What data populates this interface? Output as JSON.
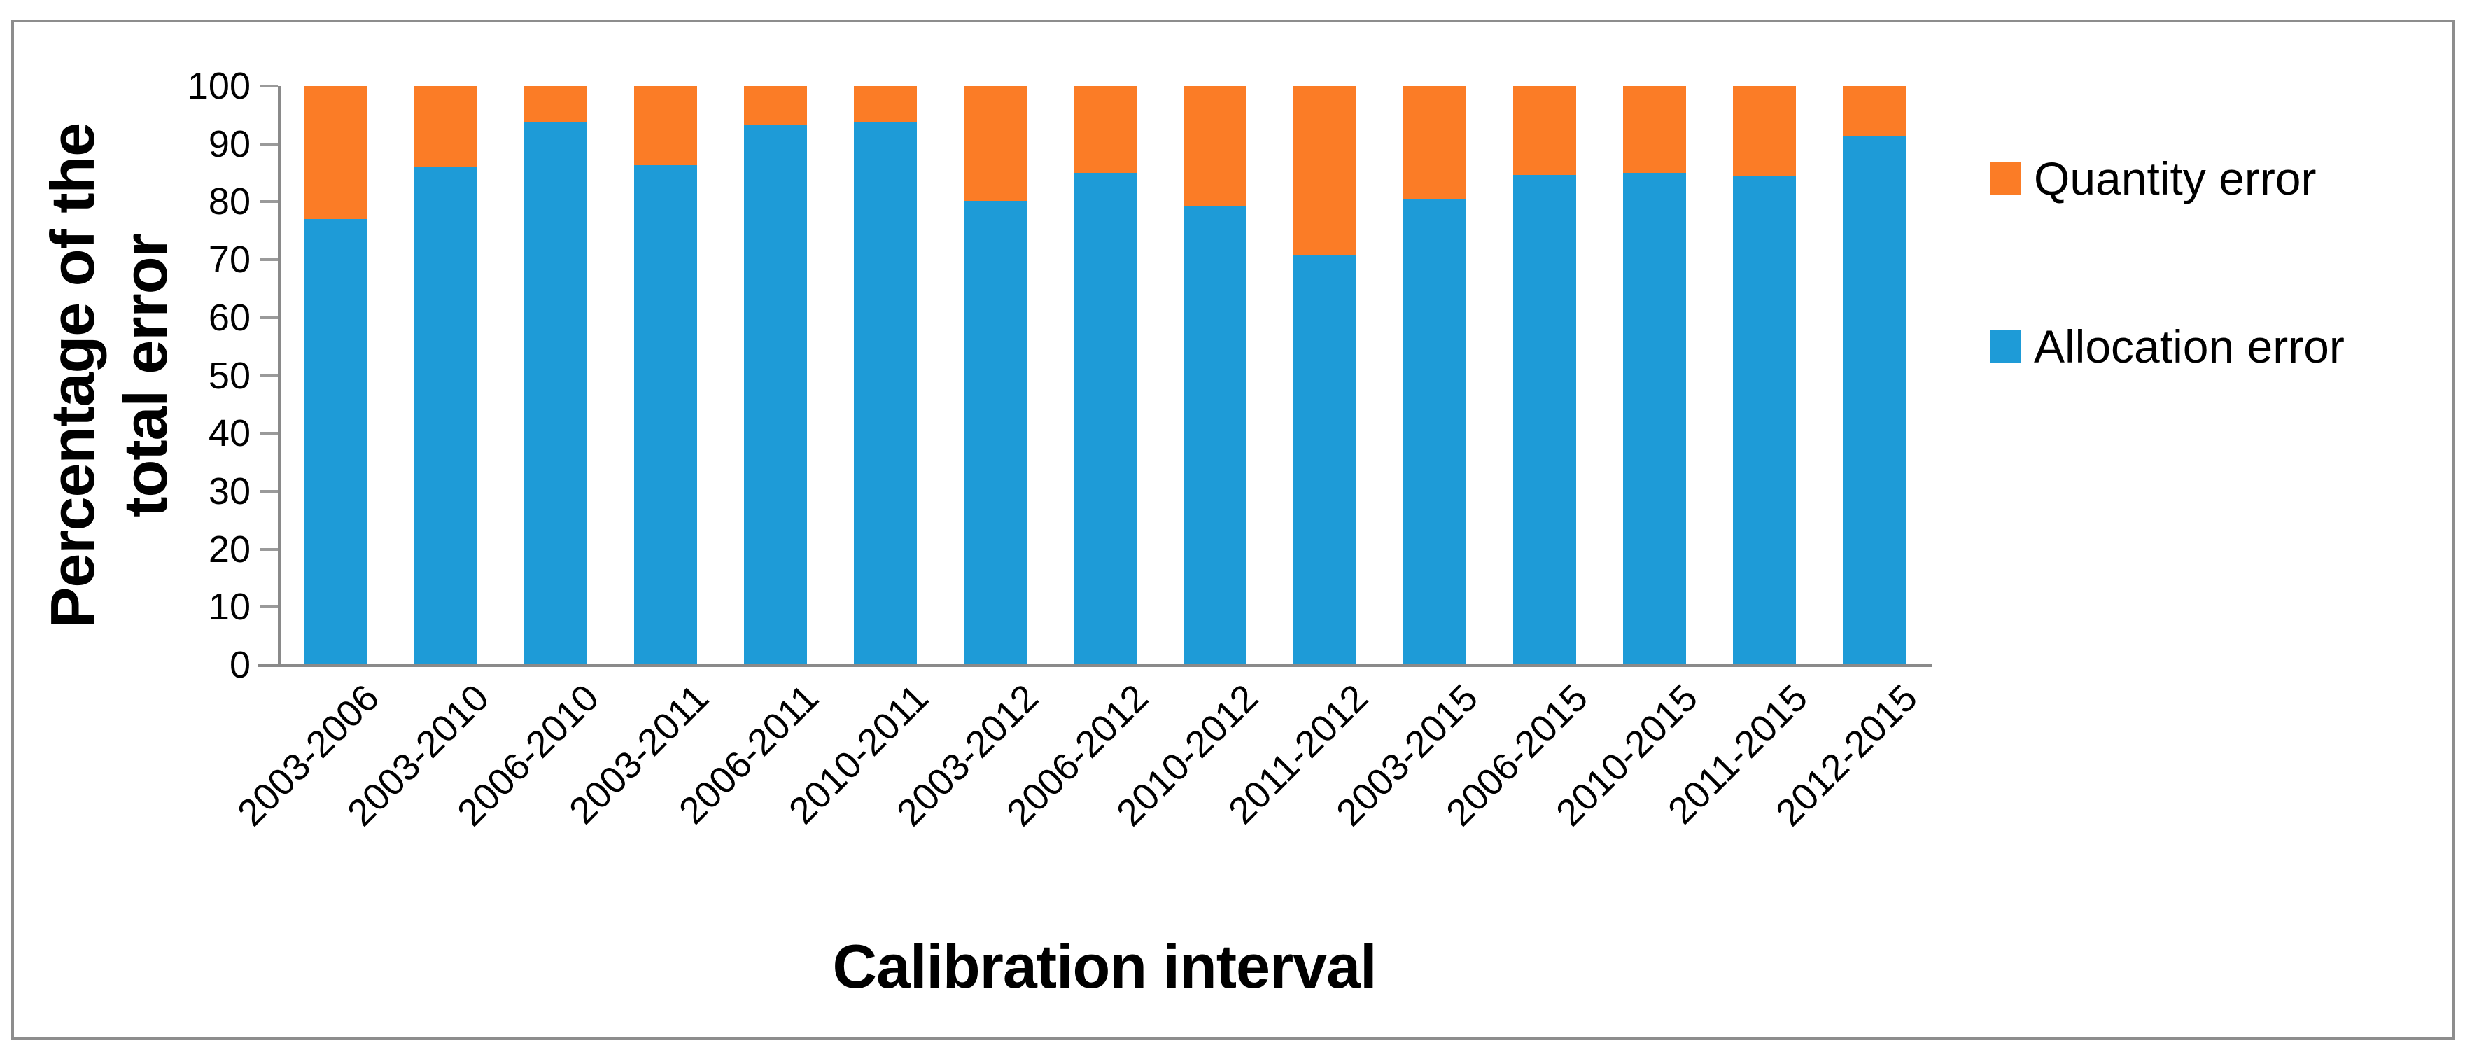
{
  "chart_data": {
    "type": "bar",
    "stacked": true,
    "title": "",
    "xlabel": "Calibration interval",
    "ylabel": "Percentage of the total error",
    "categories": [
      "2003-2006",
      "2003-2010",
      "2006-2010",
      "2003-2011",
      "2006-2011",
      "2010-2011",
      "2003-2012",
      "2006-2012",
      "2010-2012",
      "2011-2012",
      "2003-2015",
      "2006-2015",
      "2010-2015",
      "2011-2015",
      "2012-2015"
    ],
    "series": [
      {
        "name": "Allocation error",
        "color": "#1E9BD7",
        "values": [
          77.0,
          86.0,
          93.7,
          86.3,
          93.3,
          93.7,
          80.2,
          85.0,
          79.4,
          70.9,
          80.5,
          84.7,
          85.0,
          84.6,
          91.3
        ]
      },
      {
        "name": "Quantity error",
        "color": "#FB7C26",
        "values": [
          23.0,
          14.0,
          6.3,
          13.7,
          6.7,
          6.3,
          19.8,
          15.0,
          20.6,
          29.1,
          19.5,
          15.3,
          15.0,
          15.4,
          8.7
        ]
      }
    ],
    "ylim": [
      0,
      100
    ],
    "yticks": [
      0,
      10,
      20,
      30,
      40,
      50,
      60,
      70,
      80,
      90,
      100
    ],
    "grid": false,
    "legend_position": "right"
  },
  "axes": {
    "x_title": "Calibration interval",
    "y_title": "Percentage of the total error"
  },
  "legend": {
    "items": [
      {
        "label": "Quantity error",
        "color": "#FB7C26"
      },
      {
        "label": "Allocation error",
        "color": "#1E9BD7"
      }
    ]
  },
  "colors": {
    "quantity": "#FB7C26",
    "allocation": "#1E9BD7",
    "axis": "#8A8A8A",
    "frame": "#8D8D8D",
    "text": "#000000",
    "background": "#FFFFFF"
  }
}
